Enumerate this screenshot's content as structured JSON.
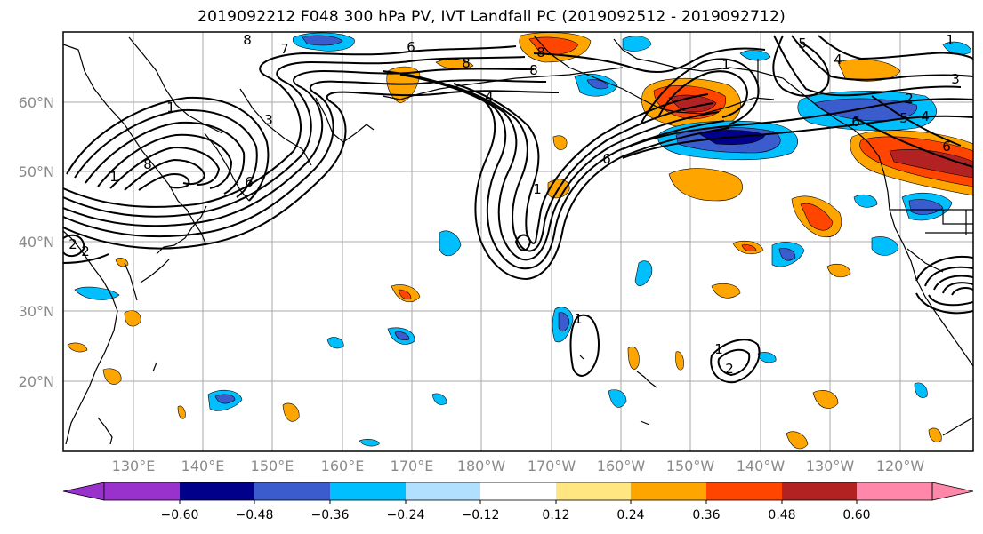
{
  "title": "2019092212 F048 300 hPa PV, IVT Landfall PC (2019092512 - 2019092712)",
  "map": {
    "lat_labels": [
      "60°N",
      "50°N",
      "40°N",
      "30°N",
      "20°N"
    ],
    "lon_labels": [
      "130°E",
      "140°E",
      "150°E",
      "160°E",
      "170°E",
      "180°W",
      "170°W",
      "160°W",
      "150°W",
      "140°W",
      "130°W",
      "120°W"
    ],
    "contour_labels": [
      "8",
      "7",
      "6",
      "8",
      "4",
      "1",
      "3",
      "8",
      "8",
      "6",
      "1",
      "6",
      "1",
      "4",
      "5",
      "5",
      "2",
      "6",
      "4",
      "1",
      "2",
      "2",
      "1",
      "8",
      "6",
      "3",
      "1",
      "2",
      "1"
    ],
    "colors": {
      "land_line": "#000000",
      "grid": "#8c8c8c",
      "frame": "#000000"
    }
  },
  "colorbar": {
    "tick_labels": [
      "−0.60",
      "−0.48",
      "−0.36",
      "−0.24",
      "−0.12",
      "0.12",
      "0.24",
      "0.36",
      "0.48",
      "0.60"
    ],
    "colors": [
      "#9932cc",
      "#00008b",
      "#3a5ccc",
      "#00bfff",
      "#b0e0fe",
      "#ffffff",
      "#ffe680",
      "#ffa500",
      "#ff4500",
      "#b22222",
      "#ff88aa"
    ]
  }
}
